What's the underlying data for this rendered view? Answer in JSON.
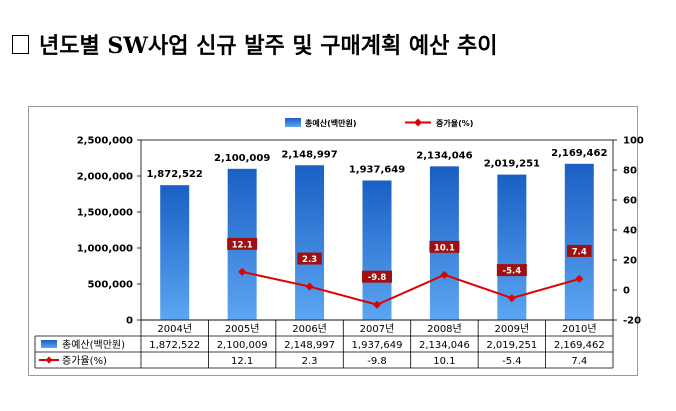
{
  "page": {
    "title": "년도별 SW사업 신규 발주 및 구매계획 예산 추이"
  },
  "colors": {
    "bar": "#1f6fd0",
    "bar_light": "#5aa3f0",
    "line": "#e00000",
    "label_bg": "#a01010"
  },
  "chart_data": {
    "type": "bar",
    "title": "",
    "categories": [
      "2004년",
      "2005년",
      "2006년",
      "2007년",
      "2008년",
      "2009년",
      "2010년"
    ],
    "series": [
      {
        "name": "총예산(백만원)",
        "type": "bar",
        "axis": "left",
        "values": [
          1872522,
          2100009,
          2148997,
          1937649,
          2134046,
          2019251,
          2169462
        ],
        "labels": [
          "1,872,522",
          "2,100,009",
          "2,148,997",
          "1,937,649",
          "2,134,046",
          "2,019,251",
          "2,169,462"
        ]
      },
      {
        "name": "증가율(%)",
        "type": "line",
        "axis": "right",
        "values": [
          null,
          12.1,
          2.3,
          -9.8,
          10.1,
          -5.4,
          7.4
        ],
        "labels": [
          "",
          "12.1",
          "2.3",
          "-9.8",
          "10.1",
          "-5.4",
          "7.4"
        ]
      }
    ],
    "y_left": {
      "range": [
        0,
        2500000
      ],
      "ticks": [
        0,
        500000,
        1000000,
        1500000,
        2000000,
        2500000
      ],
      "tick_labels": [
        "0",
        "500,000",
        "1,000,000",
        "1,500,000",
        "2,000,000",
        "2,500,000"
      ]
    },
    "y_right": {
      "range": [
        -20,
        100
      ],
      "ticks": [
        -20,
        0,
        20,
        40,
        60,
        80,
        100
      ],
      "tick_labels": [
        "-20",
        "0",
        "20",
        "40",
        "60",
        "80",
        "100"
      ]
    },
    "legend": {
      "position": "top",
      "items": [
        "총예산(백만원)",
        "증가율(%)"
      ]
    },
    "data_table": {
      "rows": [
        {
          "name": "총예산(백만원)",
          "cells": [
            "1,872,522",
            "2,100,009",
            "2,148,997",
            "1,937,649",
            "2,134,046",
            "2,019,251",
            "2,169,462"
          ]
        },
        {
          "name": "증가율(%)",
          "cells": [
            "",
            "12.1",
            "2.3",
            "-9.8",
            "10.1",
            "-5.4",
            "7.4"
          ]
        }
      ]
    }
  }
}
